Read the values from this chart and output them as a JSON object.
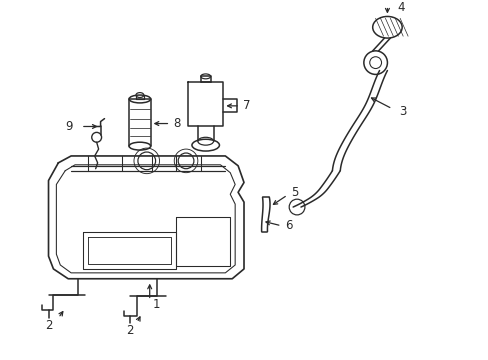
{
  "bg_color": "#ffffff",
  "line_color": "#2a2a2a",
  "figsize": [
    4.89,
    3.6
  ],
  "dpi": 100
}
